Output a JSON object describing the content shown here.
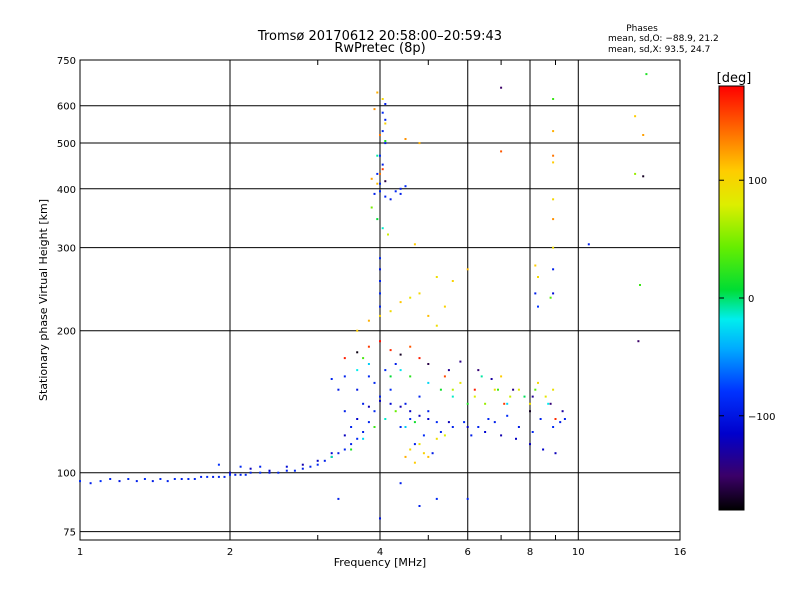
{
  "chart_data": {
    "type": "scatter",
    "title": "Tromsø 20170612 20:58:00–20:59:43",
    "subtitle": "RwPretec (8p)",
    "xlabel": "Frequency [MHz]",
    "ylabel": "Stationary phase Virtual Height [km]",
    "x_scale": "log2",
    "y_scale": "log",
    "xlim": [
      1,
      16
    ],
    "ylim": [
      72,
      750
    ],
    "x_ticks": [
      1,
      2,
      4,
      6,
      8,
      10,
      16
    ],
    "x_tick_labels": [
      "1",
      "2",
      "4",
      "6",
      "8",
      "10",
      "16"
    ],
    "y_ticks": [
      75,
      100,
      200,
      300,
      400,
      500,
      600,
      750
    ],
    "y_tick_labels": [
      "75",
      "100",
      "200",
      "300",
      "400",
      "500",
      "600",
      "750"
    ],
    "grid": true,
    "phase_stats": {
      "heading": "Phases",
      "line_o": "mean, sd,O: −88.9, 21.2",
      "line_x": "mean, sd,X:  93.5, 24.7"
    },
    "colorbar": {
      "unit": "[deg]",
      "range": [
        -180,
        180
      ],
      "ticks": [
        100,
        0,
        -100
      ],
      "tick_labels": [
        "100",
        "0",
        "−100"
      ]
    },
    "points": [
      [
        1.0,
        96,
        -95
      ],
      [
        1.05,
        95,
        -100
      ],
      [
        1.1,
        96,
        -92
      ],
      [
        1.15,
        97,
        -98
      ],
      [
        1.2,
        96,
        -105
      ],
      [
        1.25,
        97,
        -96
      ],
      [
        1.3,
        96,
        -100
      ],
      [
        1.35,
        97,
        -94
      ],
      [
        1.4,
        96,
        -102
      ],
      [
        1.45,
        97,
        -97
      ],
      [
        1.5,
        96,
        -99
      ],
      [
        1.55,
        97,
        -95
      ],
      [
        1.6,
        97,
        -101
      ],
      [
        1.65,
        97,
        -98
      ],
      [
        1.7,
        97,
        -96
      ],
      [
        1.75,
        98,
        -100
      ],
      [
        1.8,
        98,
        -94
      ],
      [
        1.85,
        98,
        -102
      ],
      [
        1.9,
        98,
        -97
      ],
      [
        1.95,
        98,
        -99
      ],
      [
        2.0,
        99,
        -95
      ],
      [
        2.05,
        99,
        -101
      ],
      [
        2.1,
        99,
        -98
      ],
      [
        2.15,
        99,
        -96
      ],
      [
        2.2,
        100,
        -100
      ],
      [
        2.3,
        100,
        -94
      ],
      [
        2.4,
        100,
        -102
      ],
      [
        2.5,
        100,
        -97
      ],
      [
        2.6,
        101,
        -99
      ],
      [
        2.7,
        101,
        -95
      ],
      [
        2.8,
        102,
        -101
      ],
      [
        2.9,
        103,
        -98
      ],
      [
        3.0,
        104,
        -96
      ],
      [
        3.1,
        106,
        -100
      ],
      [
        3.2,
        108,
        -94
      ],
      [
        3.3,
        110,
        -102
      ],
      [
        3.4,
        112,
        -97
      ],
      [
        3.5,
        115,
        -99
      ],
      [
        3.6,
        118,
        -95
      ],
      [
        3.7,
        122,
        -101
      ],
      [
        3.8,
        128,
        -98
      ],
      [
        3.9,
        135,
        -96
      ],
      [
        4.0,
        145,
        -100
      ],
      [
        4.2,
        150,
        -94
      ],
      [
        4.5,
        140,
        -102
      ],
      [
        4.8,
        145,
        -97
      ],
      [
        5.0,
        135,
        -99
      ],
      [
        5.2,
        128,
        -95
      ],
      [
        1.9,
        104,
        -92
      ],
      [
        2.1,
        103,
        -96
      ],
      [
        2.3,
        103,
        -98
      ],
      [
        3.4,
        135,
        -100
      ],
      [
        3.6,
        150,
        -103
      ],
      [
        3.8,
        160,
        -95
      ],
      [
        3.5,
        125,
        -98
      ],
      [
        3.7,
        140,
        -100
      ],
      [
        3.9,
        155,
        -96
      ],
      [
        3.3,
        150,
        -102
      ],
      [
        3.2,
        158,
        -97
      ],
      [
        3.4,
        160,
        -99
      ],
      [
        4.1,
        165,
        -95
      ],
      [
        4.3,
        170,
        -101
      ],
      [
        4.4,
        125,
        -98
      ],
      [
        4.6,
        130,
        -96
      ],
      [
        4.7,
        115,
        -100
      ],
      [
        4.9,
        120,
        -94
      ],
      [
        5.1,
        110,
        -102
      ],
      [
        5.3,
        122,
        -97
      ],
      [
        5.6,
        125,
        -99
      ],
      [
        5.9,
        128,
        -95
      ],
      [
        6.1,
        120,
        -101
      ],
      [
        6.3,
        125,
        -98
      ],
      [
        6.6,
        130,
        -96
      ],
      [
        6.8,
        128,
        -100
      ],
      [
        7.2,
        132,
        -94
      ],
      [
        7.6,
        125,
        -102
      ],
      [
        8.1,
        122,
        -97
      ],
      [
        8.4,
        130,
        -99
      ],
      [
        8.9,
        125,
        -95
      ],
      [
        9.2,
        128,
        -101
      ],
      [
        9.4,
        130,
        -98
      ],
      [
        4.0,
        255,
        -100
      ],
      [
        4.0,
        240,
        -95
      ],
      [
        4.0,
        225,
        -98
      ],
      [
        4.0,
        270,
        -103
      ],
      [
        4.0,
        285,
        -96
      ],
      [
        3.9,
        390,
        -100
      ],
      [
        4.0,
        395,
        -95
      ],
      [
        4.1,
        385,
        -98
      ],
      [
        4.2,
        380,
        -102
      ],
      [
        4.3,
        395,
        -97
      ],
      [
        4.4,
        400,
        -99
      ],
      [
        4.5,
        405,
        -95
      ],
      [
        4.4,
        390,
        -101
      ],
      [
        4.0,
        410,
        -98
      ],
      [
        3.95,
        430,
        -96
      ],
      [
        4.05,
        450,
        -100
      ],
      [
        4.0,
        470,
        -94
      ],
      [
        4.1,
        500,
        -102
      ],
      [
        4.05,
        530,
        -97
      ],
      [
        4.1,
        560,
        -99
      ],
      [
        4.05,
        580,
        -95
      ],
      [
        4.1,
        605,
        -101
      ],
      [
        7.0,
        655,
        -150
      ],
      [
        10.5,
        305,
        -100
      ],
      [
        13.5,
        425,
        -170
      ],
      [
        13.2,
        190,
        -150
      ],
      [
        3.3,
        88,
        -100
      ],
      [
        4.0,
        80,
        -105
      ],
      [
        4.8,
        85,
        -100
      ],
      [
        5.2,
        88,
        -95
      ],
      [
        6.0,
        88,
        -100
      ],
      [
        4.4,
        95,
        -100
      ],
      [
        4.5,
        108,
        120
      ],
      [
        4.6,
        112,
        100
      ],
      [
        4.7,
        105,
        110
      ],
      [
        4.8,
        115,
        90
      ],
      [
        4.9,
        110,
        105
      ],
      [
        5.0,
        108,
        115
      ],
      [
        5.2,
        118,
        95
      ],
      [
        5.4,
        120,
        80
      ],
      [
        5.6,
        150,
        70
      ],
      [
        5.8,
        155,
        90
      ],
      [
        6.2,
        145,
        80
      ],
      [
        6.5,
        140,
        60
      ],
      [
        6.8,
        150,
        95
      ],
      [
        7.0,
        160,
        110
      ],
      [
        7.3,
        145,
        75
      ],
      [
        7.6,
        150,
        85
      ],
      [
        8.0,
        140,
        95
      ],
      [
        8.3,
        155,
        100
      ],
      [
        8.6,
        145,
        88
      ],
      [
        8.9,
        150,
        92
      ],
      [
        3.6,
        200,
        110
      ],
      [
        3.8,
        210,
        120
      ],
      [
        4.0,
        215,
        105
      ],
      [
        4.2,
        220,
        98
      ],
      [
        4.4,
        230,
        112
      ],
      [
        4.6,
        235,
        90
      ],
      [
        4.8,
        240,
        100
      ],
      [
        5.0,
        215,
        115
      ],
      [
        5.2,
        205,
        95
      ],
      [
        5.4,
        225,
        105
      ],
      [
        3.95,
        640,
        120
      ],
      [
        4.05,
        620,
        100
      ],
      [
        3.9,
        590,
        130
      ],
      [
        4.1,
        550,
        105
      ],
      [
        4.0,
        430,
        140
      ],
      [
        3.95,
        410,
        115
      ],
      [
        13.0,
        570,
        110
      ],
      [
        13.5,
        520,
        125
      ],
      [
        13.0,
        430,
        60
      ],
      [
        13.3,
        250,
        30
      ],
      [
        13.7,
        700,
        20
      ],
      [
        8.9,
        620,
        30
      ],
      [
        8.9,
        530,
        120
      ],
      [
        8.9,
        470,
        140
      ],
      [
        8.9,
        455,
        110
      ],
      [
        8.9,
        380,
        100
      ],
      [
        8.9,
        345,
        130
      ],
      [
        8.9,
        300,
        95
      ],
      [
        8.2,
        275,
        110
      ],
      [
        8.3,
        260,
        100
      ],
      [
        8.8,
        235,
        40
      ],
      [
        8.9,
        270,
        -100
      ],
      [
        8.9,
        240,
        -110
      ],
      [
        8.2,
        240,
        -100
      ],
      [
        8.3,
        225,
        -90
      ],
      [
        7.0,
        480,
        150
      ],
      [
        4.8,
        500,
        120
      ],
      [
        4.5,
        510,
        130
      ],
      [
        4.7,
        305,
        110
      ],
      [
        5.2,
        260,
        95
      ],
      [
        6.0,
        270,
        115
      ],
      [
        5.6,
        255,
        105
      ],
      [
        3.6,
        165,
        -15
      ],
      [
        3.7,
        175,
        35
      ],
      [
        3.8,
        170,
        -30
      ],
      [
        4.2,
        160,
        10
      ],
      [
        4.4,
        165,
        -20
      ],
      [
        4.6,
        160,
        25
      ],
      [
        5.0,
        155,
        -25
      ],
      [
        5.3,
        150,
        15
      ],
      [
        5.6,
        145,
        -10
      ],
      [
        6.0,
        140,
        20
      ],
      [
        6.4,
        160,
        -5
      ],
      [
        6.9,
        150,
        30
      ],
      [
        7.2,
        140,
        -25
      ],
      [
        7.8,
        145,
        5
      ],
      [
        8.2,
        150,
        40
      ],
      [
        8.7,
        140,
        -15
      ],
      [
        3.2,
        108,
        -5
      ],
      [
        3.5,
        112,
        20
      ],
      [
        3.7,
        118,
        -25
      ],
      [
        3.9,
        125,
        30
      ],
      [
        4.1,
        130,
        -10
      ],
      [
        4.3,
        135,
        45
      ],
      [
        4.5,
        125,
        -30
      ],
      [
        4.7,
        128,
        15
      ],
      [
        3.4,
        175,
        170
      ],
      [
        3.6,
        180,
        -175
      ],
      [
        3.8,
        185,
        160
      ],
      [
        4.0,
        190,
        175
      ],
      [
        4.2,
        182,
        165
      ],
      [
        4.4,
        178,
        -170
      ],
      [
        4.6,
        185,
        150
      ],
      [
        4.8,
        175,
        170
      ],
      [
        5.0,
        170,
        -160
      ],
      [
        5.4,
        160,
        155
      ],
      [
        6.2,
        150,
        170
      ],
      [
        7.1,
        140,
        160
      ],
      [
        8.0,
        135,
        -170
      ],
      [
        9.0,
        130,
        165
      ],
      [
        5.5,
        165,
        -135
      ],
      [
        5.8,
        172,
        -140
      ],
      [
        6.3,
        165,
        -145
      ],
      [
        6.7,
        158,
        -130
      ],
      [
        7.4,
        150,
        -140
      ],
      [
        8.1,
        145,
        -135
      ],
      [
        8.8,
        140,
        -145
      ],
      [
        9.3,
        135,
        -130
      ],
      [
        2.0,
        100,
        -120
      ],
      [
        2.2,
        102,
        -120
      ],
      [
        2.4,
        101,
        -115
      ],
      [
        2.6,
        103,
        -110
      ],
      [
        2.8,
        104,
        -125
      ],
      [
        3.0,
        106,
        -118
      ],
      [
        3.2,
        110,
        -112
      ],
      [
        3.4,
        120,
        -120
      ],
      [
        3.6,
        130,
        -115
      ],
      [
        3.8,
        138,
        -122
      ],
      [
        4.0,
        142,
        -118
      ],
      [
        4.2,
        140,
        -112
      ],
      [
        4.4,
        138,
        -125
      ],
      [
        4.6,
        135,
        -118
      ],
      [
        4.8,
        132,
        -120
      ],
      [
        5.0,
        130,
        -115
      ],
      [
        5.5,
        128,
        -122
      ],
      [
        6.0,
        125,
        -118
      ],
      [
        6.5,
        122,
        -112
      ],
      [
        7.0,
        120,
        -125
      ],
      [
        7.5,
        118,
        -118
      ],
      [
        8.0,
        115,
        -120
      ],
      [
        8.5,
        112,
        -115
      ],
      [
        9.0,
        110,
        -122
      ],
      [
        3.85,
        365,
        50
      ],
      [
        3.95,
        345,
        10
      ],
      [
        4.05,
        330,
        -10
      ],
      [
        4.15,
        320,
        75
      ],
      [
        4.1,
        505,
        20
      ],
      [
        4.0,
        520,
        140
      ],
      [
        3.95,
        470,
        -5
      ],
      [
        4.05,
        440,
        160
      ],
      [
        4.1,
        415,
        -160
      ],
      [
        3.85,
        420,
        125
      ]
    ]
  }
}
